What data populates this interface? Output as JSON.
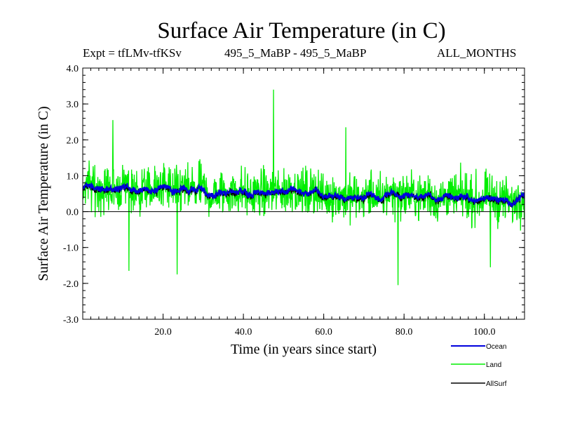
{
  "chart_data": {
    "type": "line",
    "title": "Surface Air Temperature (in C)",
    "subtitle_left": "Expt = tfLMv-tfKSv",
    "subtitle_center": "495_5_MaBP - 495_5_MaBP",
    "subtitle_right": "ALL_MONTHS",
    "xlabel": "Time (in years since start)",
    "ylabel": "Surface Air Temperature (in C)",
    "xlim": [
      0,
      110
    ],
    "ylim": [
      -3.0,
      4.0
    ],
    "x_ticks": [
      20,
      40,
      60,
      80,
      100
    ],
    "x_tick_labels": [
      "20.0",
      "40.0",
      "60.0",
      "80.0",
      "100.0"
    ],
    "y_ticks": [
      -3,
      -2,
      -1,
      0,
      1,
      2,
      3,
      4
    ],
    "y_tick_labels": [
      "-3.0",
      "-2.0",
      "-1.0",
      "0.0",
      "1.0",
      "2.0",
      "3.0",
      "4.0"
    ],
    "zero_line": true,
    "samples_per_year": 12,
    "series": [
      {
        "name": "Land",
        "color": "#00ee00",
        "approx_mean": 0.45,
        "approx_range": [
          -2.05,
          3.4
        ],
        "notable_points": [
          {
            "x": 7.5,
            "y": 2.55
          },
          {
            "x": 11.5,
            "y": -1.65
          },
          {
            "x": 23.5,
            "y": -1.75
          },
          {
            "x": 47.5,
            "y": 3.4
          },
          {
            "x": 65.5,
            "y": 2.35
          },
          {
            "x": 78.5,
            "y": -2.05
          },
          {
            "x": 101.5,
            "y": -1.55
          }
        ]
      },
      {
        "name": "AllSurf",
        "color": "#000000",
        "approx_mean": 0.42,
        "approx_range": [
          0.1,
          0.75
        ],
        "start_value": 0.65,
        "end_value": 0.3
      },
      {
        "name": "Ocean",
        "color": "#0000dd",
        "approx_mean": 0.45,
        "approx_range": [
          0.2,
          0.75
        ],
        "start_value": 0.65,
        "end_value": 0.35
      }
    ],
    "legend": [
      "Ocean",
      "Land",
      "AllSurf"
    ],
    "legend_position": "bottom-right"
  }
}
